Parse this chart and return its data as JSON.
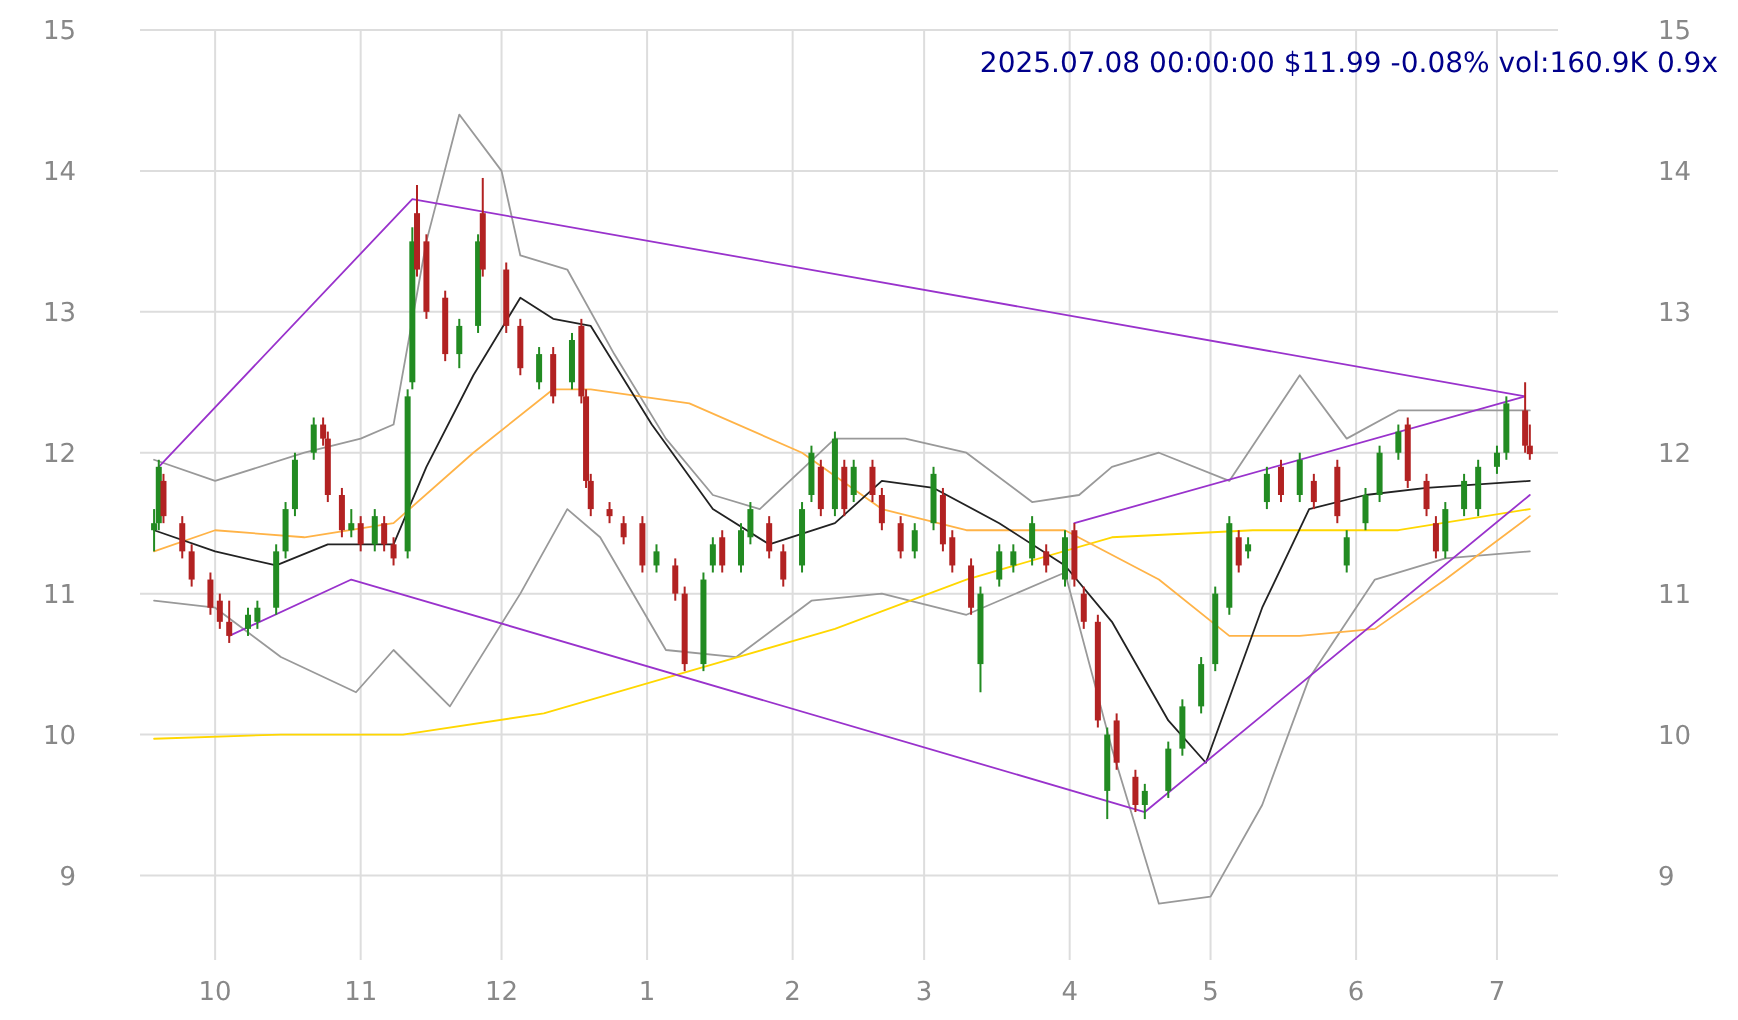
{
  "chart_data": {
    "type": "candlestick",
    "title": "2025.07.08 00:00:00 $11.99 -0.08% vol:160.9K 0.9x",
    "xlim": [
      "2024-09-15",
      "2025-07-14"
    ],
    "ylim": [
      8.4,
      15
    ],
    "yticks": [
      9,
      10,
      11,
      12,
      13,
      14,
      15
    ],
    "y2lim": [
      8.4,
      15
    ],
    "y2ticks": [
      9,
      10,
      11,
      12,
      13,
      14,
      15
    ],
    "xticks": [
      {
        "value": "2024-10-01",
        "label": "10"
      },
      {
        "value": "2024-11-01",
        "label": "11"
      },
      {
        "value": "2024-12-01",
        "label": "12"
      },
      {
        "value": "2025-01-01",
        "label": "1"
      },
      {
        "value": "2025-02-01",
        "label": "2"
      },
      {
        "value": "2025-03-01",
        "label": "3"
      },
      {
        "value": "2025-04-01",
        "label": "4"
      },
      {
        "value": "2025-05-01",
        "label": "5"
      },
      {
        "value": "2025-06-01",
        "label": "6"
      },
      {
        "value": "2025-07-01",
        "label": "7"
      }
    ],
    "grid": true,
    "series": [
      {
        "type": "line",
        "color": "#999999",
        "x": [
          "2024-09-18",
          "2024-10-01",
          "2024-10-20",
          "2024-11-01",
          "2024-11-08",
          "2024-11-15",
          "2024-11-22",
          "2024-12-01",
          "2024-12-05",
          "2024-12-15",
          "2024-12-25",
          "2025-01-05",
          "2025-01-15",
          "2025-01-25",
          "2025-02-10",
          "2025-02-25",
          "2025-03-10",
          "2025-03-24",
          "2025-04-03",
          "2025-04-10",
          "2025-04-20",
          "2025-05-05",
          "2025-05-20",
          "2025-05-30",
          "2025-06-10",
          "2025-06-25",
          "2025-07-08"
        ],
        "values": [
          11.95,
          11.8,
          12.0,
          12.1,
          12.2,
          13.5,
          14.4,
          14.0,
          13.4,
          13.3,
          12.7,
          12.1,
          11.7,
          11.6,
          12.1,
          12.1,
          12.0,
          11.65,
          11.7,
          11.9,
          12.0,
          11.8,
          12.55,
          12.1,
          12.3,
          12.3,
          12.3
        ]
      },
      {
        "type": "line",
        "color": "#999999",
        "x": [
          "2024-09-18",
          "2024-10-01",
          "2024-10-15",
          "2024-10-31",
          "2024-11-08",
          "2024-11-20",
          "2024-12-05",
          "2024-12-15",
          "2024-12-22",
          "2025-01-05",
          "2025-01-20",
          "2025-02-05",
          "2025-02-20",
          "2025-03-10",
          "2025-03-31",
          "2025-04-10",
          "2025-04-20",
          "2025-05-01",
          "2025-05-12",
          "2025-05-22",
          "2025-06-05",
          "2025-06-20",
          "2025-07-08"
        ],
        "values": [
          10.95,
          10.9,
          10.55,
          10.3,
          10.6,
          10.2,
          11.0,
          11.6,
          11.4,
          10.6,
          10.55,
          10.95,
          11.0,
          10.85,
          11.15,
          9.9,
          8.8,
          8.85,
          9.5,
          10.4,
          11.1,
          11.25,
          11.3
        ]
      },
      {
        "type": "line",
        "color": "#ffd700",
        "x": [
          "2024-09-18",
          "2024-10-15",
          "2024-11-10",
          "2024-12-10",
          "2025-01-10",
          "2025-02-10",
          "2025-03-10",
          "2025-04-10",
          "2025-05-10",
          "2025-06-10",
          "2025-07-08"
        ],
        "values": [
          9.97,
          10.0,
          10.0,
          10.15,
          10.45,
          10.75,
          11.1,
          11.4,
          11.45,
          11.45,
          11.6
        ]
      },
      {
        "type": "line",
        "color": "#ffb347",
        "x": [
          "2024-09-18",
          "2024-10-01",
          "2024-10-20",
          "2024-11-08",
          "2024-11-25",
          "2024-12-12",
          "2024-12-20",
          "2025-01-10",
          "2025-02-03",
          "2025-02-20",
          "2025-03-10",
          "2025-03-31",
          "2025-04-20",
          "2025-05-05",
          "2025-05-20",
          "2025-06-05",
          "2025-06-20",
          "2025-07-08"
        ],
        "values": [
          11.3,
          11.45,
          11.4,
          11.5,
          12.0,
          12.45,
          12.45,
          12.35,
          12.0,
          11.6,
          11.45,
          11.45,
          11.1,
          10.7,
          10.7,
          10.75,
          11.1,
          11.55
        ]
      },
      {
        "type": "line",
        "color": "#222222",
        "x": [
          "2024-09-18",
          "2024-10-01",
          "2024-10-14",
          "2024-10-25",
          "2024-11-08",
          "2024-11-15",
          "2024-11-25",
          "2024-12-05",
          "2024-12-12",
          "2024-12-20",
          "2025-01-02",
          "2025-01-15",
          "2025-01-27",
          "2025-02-10",
          "2025-02-20",
          "2025-03-03",
          "2025-03-17",
          "2025-03-31",
          "2025-04-10",
          "2025-04-22",
          "2025-04-30",
          "2025-05-12",
          "2025-05-22",
          "2025-06-03",
          "2025-06-16",
          "2025-07-08"
        ],
        "values": [
          11.45,
          11.3,
          11.2,
          11.35,
          11.35,
          11.9,
          12.55,
          13.1,
          12.95,
          12.9,
          12.2,
          11.6,
          11.35,
          11.5,
          11.8,
          11.75,
          11.5,
          11.2,
          10.8,
          10.1,
          9.8,
          10.9,
          11.6,
          11.7,
          11.75,
          11.8
        ]
      },
      {
        "type": "line",
        "color": "#9932cc",
        "x": [
          "2024-09-19",
          "2024-11-12",
          "2025-07-07"
        ],
        "values": [
          11.9,
          13.8,
          12.4
        ]
      },
      {
        "type": "line",
        "color": "#9932cc",
        "x": [
          "2024-10-04",
          "2024-10-30",
          "2025-04-17",
          "2025-07-08"
        ],
        "values": [
          10.7,
          11.1,
          9.45,
          11.7
        ]
      },
      {
        "type": "line",
        "color": "#9932cc",
        "x": [
          "2025-04-02",
          "2025-07-07"
        ],
        "values": [
          11.5,
          12.4
        ]
      },
      {
        "type": "candlestick",
        "x": [
          "2024-09-18",
          "2024-09-19",
          "2024-09-20",
          "2024-09-24",
          "2024-09-26",
          "2024-09-30",
          "2024-10-02",
          "2024-10-04",
          "2024-10-08",
          "2024-10-10",
          "2024-10-14",
          "2024-10-16",
          "2024-10-18",
          "2024-10-22",
          "2024-10-24",
          "2024-10-25",
          "2024-10-28",
          "2024-10-30",
          "2024-11-01",
          "2024-11-04",
          "2024-11-06",
          "2024-11-08",
          "2024-11-11",
          "2024-11-12",
          "2024-11-13",
          "2024-11-15",
          "2024-11-19",
          "2024-11-22",
          "2024-11-26",
          "2024-11-27",
          "2024-12-02",
          "2024-12-05",
          "2024-12-09",
          "2024-12-12",
          "2024-12-16",
          "2024-12-18",
          "2024-12-19",
          "2024-12-20",
          "2024-12-24",
          "2024-12-27",
          "2024-12-31",
          "2025-01-03",
          "2025-01-07",
          "2025-01-09",
          "2025-01-13",
          "2025-01-15",
          "2025-01-17",
          "2025-01-21",
          "2025-01-23",
          "2025-01-27",
          "2025-01-30",
          "2025-02-03",
          "2025-02-05",
          "2025-02-07",
          "2025-02-10",
          "2025-02-12",
          "2025-02-14",
          "2025-02-18",
          "2025-02-20",
          "2025-02-24",
          "2025-02-27",
          "2025-03-03",
          "2025-03-05",
          "2025-03-07",
          "2025-03-11",
          "2025-03-13",
          "2025-03-17",
          "2025-03-20",
          "2025-03-24",
          "2025-03-27",
          "2025-03-31",
          "2025-04-02",
          "2025-04-04",
          "2025-04-07",
          "2025-04-09",
          "2025-04-11",
          "2025-04-15",
          "2025-04-17",
          "2025-04-22",
          "2025-04-25",
          "2025-04-29",
          "2025-05-02",
          "2025-05-05",
          "2025-05-07",
          "2025-05-09",
          "2025-05-13",
          "2025-05-16",
          "2025-05-20",
          "2025-05-23",
          "2025-05-28",
          "2025-05-30",
          "2025-06-03",
          "2025-06-06",
          "2025-06-10",
          "2025-06-12",
          "2025-06-16",
          "2025-06-18",
          "2025-06-20",
          "2025-06-24",
          "2025-06-27",
          "2025-07-01",
          "2025-07-03",
          "2025-07-07",
          "2025-07-08"
        ],
        "ohlc": [
          [
            11.45,
            11.6,
            11.3,
            11.5
          ],
          [
            11.5,
            11.95,
            11.45,
            11.9
          ],
          [
            11.8,
            11.85,
            11.5,
            11.55
          ],
          [
            11.5,
            11.55,
            11.25,
            11.3
          ],
          [
            11.3,
            11.35,
            11.05,
            11.1
          ],
          [
            11.1,
            11.15,
            10.85,
            10.9
          ],
          [
            10.95,
            11.0,
            10.75,
            10.8
          ],
          [
            10.8,
            10.95,
            10.65,
            10.7
          ],
          [
            10.75,
            10.9,
            10.7,
            10.85
          ],
          [
            10.8,
            10.95,
            10.75,
            10.9
          ],
          [
            10.9,
            11.35,
            10.85,
            11.3
          ],
          [
            11.3,
            11.65,
            11.25,
            11.6
          ],
          [
            11.6,
            12.0,
            11.55,
            11.95
          ],
          [
            12.0,
            12.25,
            11.95,
            12.2
          ],
          [
            12.2,
            12.25,
            12.05,
            12.1
          ],
          [
            12.1,
            12.15,
            11.65,
            11.7
          ],
          [
            11.7,
            11.75,
            11.4,
            11.45
          ],
          [
            11.45,
            11.6,
            11.4,
            11.5
          ],
          [
            11.5,
            11.55,
            11.3,
            11.35
          ],
          [
            11.35,
            11.6,
            11.3,
            11.55
          ],
          [
            11.5,
            11.55,
            11.3,
            11.35
          ],
          [
            11.35,
            11.4,
            11.2,
            11.25
          ],
          [
            11.3,
            12.45,
            11.25,
            12.4
          ],
          [
            12.5,
            13.6,
            12.45,
            13.5
          ],
          [
            13.7,
            13.9,
            13.25,
            13.3
          ],
          [
            13.5,
            13.55,
            12.95,
            13.0
          ],
          [
            13.1,
            13.15,
            12.65,
            12.7
          ],
          [
            12.7,
            12.95,
            12.6,
            12.9
          ],
          [
            12.9,
            13.55,
            12.85,
            13.5
          ],
          [
            13.7,
            13.95,
            13.25,
            13.3
          ],
          [
            13.3,
            13.35,
            12.85,
            12.9
          ],
          [
            12.9,
            12.95,
            12.55,
            12.6
          ],
          [
            12.5,
            12.75,
            12.45,
            12.7
          ],
          [
            12.7,
            12.75,
            12.35,
            12.4
          ],
          [
            12.5,
            12.85,
            12.45,
            12.8
          ],
          [
            12.9,
            12.95,
            12.35,
            12.4
          ],
          [
            12.4,
            12.45,
            11.75,
            11.8
          ],
          [
            11.8,
            11.85,
            11.55,
            11.6
          ],
          [
            11.6,
            11.65,
            11.5,
            11.55
          ],
          [
            11.5,
            11.55,
            11.35,
            11.4
          ],
          [
            11.5,
            11.55,
            11.15,
            11.2
          ],
          [
            11.2,
            11.35,
            11.15,
            11.3
          ],
          [
            11.2,
            11.25,
            10.95,
            11.0
          ],
          [
            11.0,
            11.05,
            10.45,
            10.5
          ],
          [
            10.5,
            11.15,
            10.45,
            11.1
          ],
          [
            11.2,
            11.4,
            11.15,
            11.35
          ],
          [
            11.4,
            11.45,
            11.15,
            11.2
          ],
          [
            11.2,
            11.5,
            11.15,
            11.45
          ],
          [
            11.4,
            11.65,
            11.35,
            11.6
          ],
          [
            11.5,
            11.55,
            11.25,
            11.3
          ],
          [
            11.3,
            11.35,
            11.05,
            11.1
          ],
          [
            11.2,
            11.65,
            11.15,
            11.6
          ],
          [
            11.7,
            12.05,
            11.65,
            12.0
          ],
          [
            11.9,
            11.95,
            11.55,
            11.6
          ],
          [
            11.6,
            12.15,
            11.55,
            12.1
          ],
          [
            11.9,
            11.95,
            11.55,
            11.6
          ],
          [
            11.7,
            11.95,
            11.65,
            11.9
          ],
          [
            11.9,
            11.95,
            11.65,
            11.7
          ],
          [
            11.7,
            11.75,
            11.45,
            11.5
          ],
          [
            11.5,
            11.55,
            11.25,
            11.3
          ],
          [
            11.3,
            11.5,
            11.25,
            11.45
          ],
          [
            11.5,
            11.9,
            11.45,
            11.85
          ],
          [
            11.7,
            11.75,
            11.3,
            11.35
          ],
          [
            11.4,
            11.45,
            11.15,
            11.2
          ],
          [
            11.2,
            11.25,
            10.85,
            10.9
          ],
          [
            10.5,
            11.05,
            10.3,
            11.0
          ],
          [
            11.1,
            11.35,
            11.05,
            11.3
          ],
          [
            11.2,
            11.35,
            11.15,
            11.3
          ],
          [
            11.25,
            11.55,
            11.2,
            11.5
          ],
          [
            11.3,
            11.35,
            11.15,
            11.2
          ],
          [
            11.1,
            11.45,
            11.05,
            11.4
          ],
          [
            11.45,
            11.5,
            11.05,
            11.1
          ],
          [
            11.0,
            11.05,
            10.75,
            10.8
          ],
          [
            10.8,
            10.85,
            10.05,
            10.1
          ],
          [
            9.6,
            10.05,
            9.4,
            10.0
          ],
          [
            10.1,
            10.15,
            9.75,
            9.8
          ],
          [
            9.7,
            9.75,
            9.45,
            9.5
          ],
          [
            9.5,
            9.65,
            9.4,
            9.6
          ],
          [
            9.6,
            9.95,
            9.55,
            9.9
          ],
          [
            9.9,
            10.25,
            9.85,
            10.2
          ],
          [
            10.2,
            10.55,
            10.15,
            10.5
          ],
          [
            10.5,
            11.05,
            10.45,
            11.0
          ],
          [
            10.9,
            11.55,
            10.85,
            11.5
          ],
          [
            11.4,
            11.45,
            11.15,
            11.2
          ],
          [
            11.3,
            11.4,
            11.25,
            11.35
          ],
          [
            11.65,
            11.9,
            11.6,
            11.85
          ],
          [
            11.9,
            11.95,
            11.65,
            11.7
          ],
          [
            11.7,
            12.0,
            11.65,
            11.95
          ],
          [
            11.8,
            11.85,
            11.6,
            11.65
          ],
          [
            11.9,
            11.95,
            11.5,
            11.55
          ],
          [
            11.2,
            11.45,
            11.15,
            11.4
          ],
          [
            11.5,
            11.75,
            11.45,
            11.7
          ],
          [
            11.7,
            12.05,
            11.65,
            12.0
          ],
          [
            12.0,
            12.2,
            11.95,
            12.15
          ],
          [
            12.2,
            12.25,
            11.75,
            11.8
          ],
          [
            11.8,
            11.85,
            11.55,
            11.6
          ],
          [
            11.5,
            11.55,
            11.25,
            11.3
          ],
          [
            11.3,
            11.65,
            11.25,
            11.6
          ],
          [
            11.6,
            11.85,
            11.55,
            11.8
          ],
          [
            11.6,
            11.95,
            11.55,
            11.9
          ],
          [
            11.9,
            12.05,
            11.85,
            12.0
          ],
          [
            12.0,
            12.4,
            11.95,
            12.35
          ],
          [
            12.3,
            12.5,
            12.0,
            12.05
          ],
          [
            12.05,
            12.2,
            11.95,
            11.99
          ]
        ],
        "colors": [
          "#228b22",
          "#228b22",
          "#b22222",
          "#b22222",
          "#b22222",
          "#b22222",
          "#b22222",
          "#b22222",
          "#228b22",
          "#228b22",
          "#228b22",
          "#228b22",
          "#228b22",
          "#228b22",
          "#b22222",
          "#b22222",
          "#b22222",
          "#228b22",
          "#b22222",
          "#228b22",
          "#b22222",
          "#b22222",
          "#228b22",
          "#228b22",
          "#b22222",
          "#b22222",
          "#b22222",
          "#228b22",
          "#228b22",
          "#b22222",
          "#b22222",
          "#b22222",
          "#228b22",
          "#b22222",
          "#228b22",
          "#b22222",
          "#b22222",
          "#b22222",
          "#b22222",
          "#b22222",
          "#b22222",
          "#228b22",
          "#b22222",
          "#b22222",
          "#228b22",
          "#228b22",
          "#b22222",
          "#228b22",
          "#228b22",
          "#b22222",
          "#b22222",
          "#228b22",
          "#228b22",
          "#b22222",
          "#228b22",
          "#b22222",
          "#228b22",
          "#b22222",
          "#b22222",
          "#b22222",
          "#228b22",
          "#228b22",
          "#b22222",
          "#b22222",
          "#b22222",
          "#228b22",
          "#228b22",
          "#228b22",
          "#228b22",
          "#b22222",
          "#228b22",
          "#b22222",
          "#b22222",
          "#b22222",
          "#228b22",
          "#b22222",
          "#b22222",
          "#228b22",
          "#228b22",
          "#228b22",
          "#228b22",
          "#228b22",
          "#228b22",
          "#b22222",
          "#228b22",
          "#228b22",
          "#b22222",
          "#228b22",
          "#b22222",
          "#b22222",
          "#228b22",
          "#228b22",
          "#228b22",
          "#228b22",
          "#b22222",
          "#b22222",
          "#b22222",
          "#228b22",
          "#228b22",
          "#228b22",
          "#228b22",
          "#228b22",
          "#b22222",
          "#b22222"
        ]
      }
    ]
  }
}
